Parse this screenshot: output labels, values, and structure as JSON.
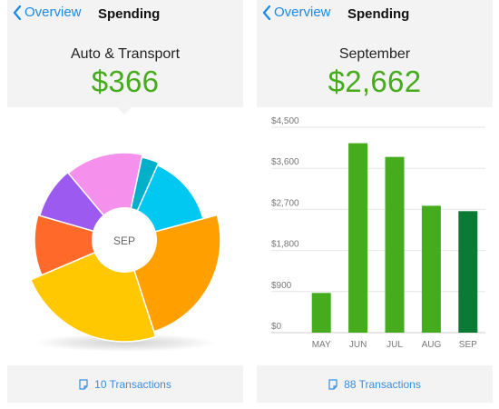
{
  "left_panel": {
    "nav": {
      "back_label": "Overview",
      "title": "Spending"
    },
    "header": {
      "category": "Auto & Transport",
      "amount": "$366"
    },
    "pie": {
      "center_label": "SEP",
      "colors": [
        "#00c8f0",
        "#ffa000",
        "#ffc800",
        "#ff6a2a",
        "#9c5af0",
        "#f591ec",
        "#00b0c8"
      ]
    },
    "footer": {
      "transactions_label": "10 Transactions"
    }
  },
  "right_panel": {
    "nav": {
      "back_label": "Overview",
      "title": "Spending"
    },
    "header": {
      "month": "September",
      "amount": "$2,662"
    },
    "footer": {
      "transactions_label": "88 Transactions"
    }
  },
  "colors": {
    "accent_green": "#46ab1d",
    "bar_green": "#46ab1d",
    "bar_selected": "#0a7a34",
    "link_blue": "#1a8ae8"
  },
  "chart_data": {
    "type": "bar",
    "categories": [
      "MAY",
      "JUN",
      "JUL",
      "AUG",
      "SEP"
    ],
    "values": [
      870,
      4150,
      3850,
      2780,
      2662
    ],
    "ylim": [
      0,
      4500
    ],
    "yticks": [
      0,
      900,
      1800,
      2700,
      3600,
      4500
    ],
    "ytick_labels": [
      "$0",
      "$900",
      "$1,800",
      "$2,700",
      "$3,600",
      "$4,500"
    ],
    "selected": "SEP",
    "grid": true
  }
}
